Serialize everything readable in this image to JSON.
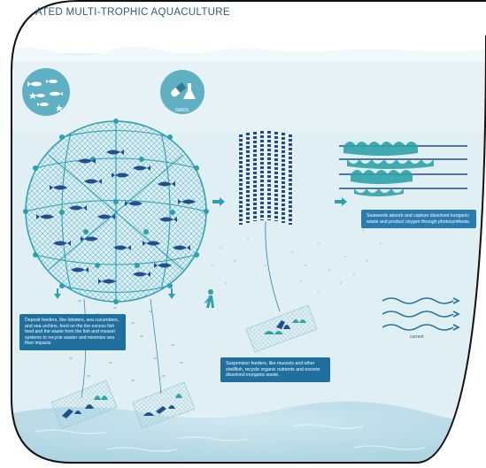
{
  "header": {
    "title": "ATED MULTI-TROPHIC AQUACULTURE"
  },
  "icons": {
    "fish_badge": "fish-species-icon",
    "inads_badge": "inads-icon",
    "inads_label": "INADS"
  },
  "captions": {
    "deposit_feeders": "Deposit feeders, like lobsters, sea cucumbers, and sea urchins, feed on the the excess fish feed and the waste from the fish and mussel systems to recycle waster and minimize sea floor impacts",
    "suspension_feeders": "Suspension feeders, like mussels and other shellfish, recycle organic nutrients and excrete dissolved inorganic waste.",
    "seaweeds": "Seaweeds absorb and capture dissolved inorganic waste and product oxygen through photosynthesis."
  },
  "current_label": "current",
  "colors": {
    "sky": "#ffffff",
    "water_top": "#e8f3f7",
    "water_mid": "#dcecf2",
    "water_floor": "#b9dbe7",
    "fish": "#1f4f8f",
    "net": "#2b9fb4",
    "seaweed": "#2ea3a8",
    "label_box": "#1f6f9f",
    "frame": "#111111"
  }
}
